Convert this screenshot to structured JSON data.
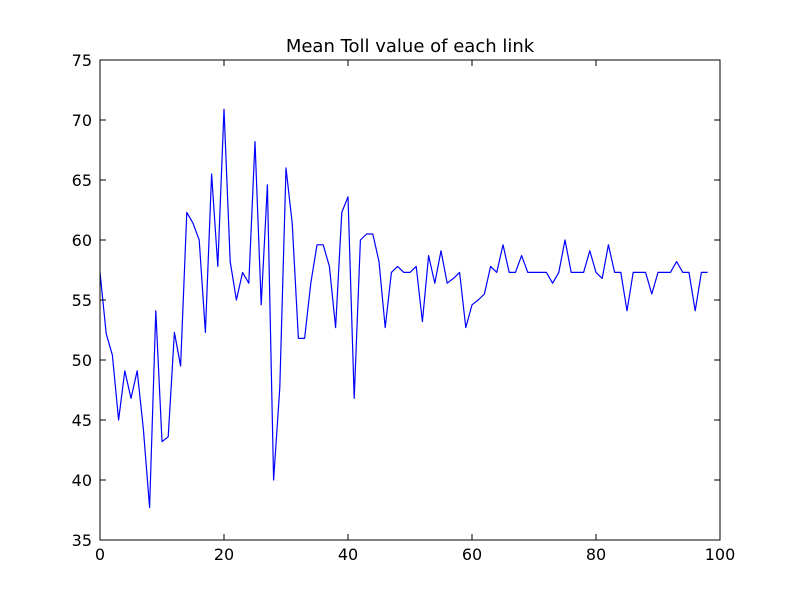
{
  "chart_data": {
    "type": "line",
    "title": "Mean Toll value of each link",
    "xlabel": "",
    "ylabel": "",
    "xlim": [
      0,
      100
    ],
    "ylim": [
      35,
      75
    ],
    "x_ticks": [
      0,
      20,
      40,
      60,
      80,
      100
    ],
    "y_ticks": [
      35,
      40,
      45,
      50,
      55,
      60,
      65,
      70,
      75
    ],
    "grid": false,
    "colors": {
      "line": "#0000ff",
      "axes": "#000000",
      "background": "#ffffff"
    },
    "series": [
      {
        "x": [
          0,
          1,
          2,
          3,
          4,
          5,
          6,
          7,
          8,
          9,
          10,
          11,
          12,
          13,
          14,
          15,
          16,
          17,
          18,
          19,
          20,
          21,
          22,
          23,
          24,
          25,
          26,
          27,
          28,
          29,
          30,
          31,
          32,
          33,
          34,
          35,
          36,
          37,
          38,
          39,
          40,
          41,
          42,
          43,
          44,
          45,
          46,
          47,
          48,
          49,
          50,
          51,
          52,
          53,
          54,
          55,
          56,
          57,
          58,
          59,
          60,
          61,
          62,
          63,
          64,
          65,
          66,
          67,
          68,
          69,
          70,
          71,
          72,
          73,
          74,
          75,
          76,
          77,
          78,
          79,
          80,
          81,
          82,
          83,
          84,
          85,
          86,
          87,
          88,
          89,
          90,
          91,
          92,
          93,
          94,
          95,
          96,
          97,
          98
        ],
        "values": [
          57.3,
          52.2,
          50.4,
          45.0,
          49.1,
          46.8,
          49.1,
          44.2,
          37.7,
          54.1,
          43.2,
          43.6,
          52.3,
          49.5,
          62.3,
          61.4,
          60.0,
          52.3,
          65.5,
          57.8,
          70.9,
          58.2,
          55.0,
          57.3,
          56.4,
          68.2,
          54.6,
          64.6,
          40.0,
          47.7,
          66.0,
          61.4,
          51.8,
          51.8,
          56.4,
          59.6,
          59.6,
          57.8,
          52.7,
          62.3,
          63.6,
          46.8,
          60.0,
          60.5,
          60.5,
          58.2,
          52.7,
          57.3,
          57.8,
          57.3,
          57.3,
          57.8,
          53.2,
          58.7,
          56.4,
          59.1,
          56.4,
          56.8,
          57.3,
          52.7,
          54.6,
          55.0,
          55.5,
          57.8,
          57.3,
          59.6,
          57.3,
          57.3,
          58.7,
          57.3,
          57.3,
          57.3,
          57.3,
          56.4,
          57.3,
          60.0,
          57.3,
          57.3,
          57.3,
          59.1,
          57.3,
          56.8,
          59.6,
          57.3,
          57.3,
          54.1,
          57.3,
          57.3,
          57.3,
          55.5,
          57.3,
          57.3,
          57.3,
          58.2,
          57.3,
          57.3,
          54.1,
          57.3,
          57.3
        ]
      }
    ]
  }
}
